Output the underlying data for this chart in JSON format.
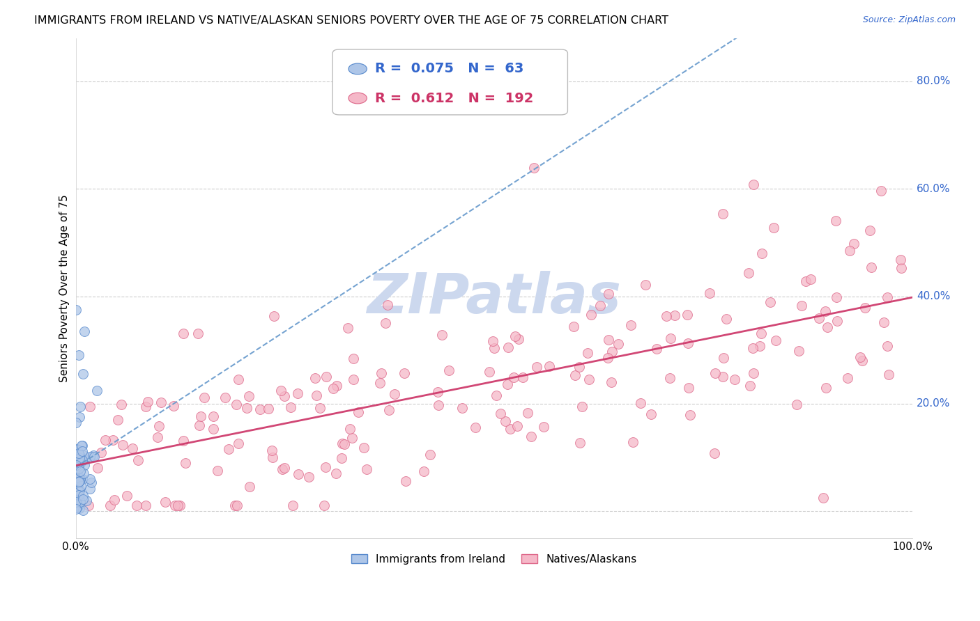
{
  "title": "IMMIGRANTS FROM IRELAND VS NATIVE/ALASKAN SENIORS POVERTY OVER THE AGE OF 75 CORRELATION CHART",
  "source_text": "Source: ZipAtlas.com",
  "ylabel": "Seniors Poverty Over the Age of 75",
  "xlim": [
    0.0,
    1.0
  ],
  "ylim": [
    -0.05,
    0.88
  ],
  "x_ticks": [
    0.0,
    1.0
  ],
  "x_tick_labels": [
    "0.0%",
    "100.0%"
  ],
  "y_ticks": [
    0.0,
    0.2,
    0.4,
    0.6,
    0.8
  ],
  "y_tick_labels": [
    "",
    "20.0%",
    "40.0%",
    "60.0%",
    "80.0%"
  ],
  "ireland_color": "#aec6e8",
  "ireland_edge_color": "#5588cc",
  "native_color": "#f5b8c8",
  "native_edge_color": "#dd6688",
  "ireland_R": 0.075,
  "ireland_N": 63,
  "native_R": 0.612,
  "native_N": 192,
  "legend_label_ireland": "Immigrants from Ireland",
  "legend_label_native": "Natives/Alaskans",
  "label_color_blue": "#3366cc",
  "label_color_pink": "#cc3366",
  "watermark_color": "#ccd8ee",
  "grid_color": "#cccccc",
  "background_color": "#ffffff",
  "title_fontsize": 11.5,
  "axis_label_fontsize": 11,
  "tick_fontsize": 11,
  "legend_fontsize": 14,
  "ireland_trend_color": "#6699cc",
  "native_trend_color": "#cc3366",
  "dot_size": 100
}
